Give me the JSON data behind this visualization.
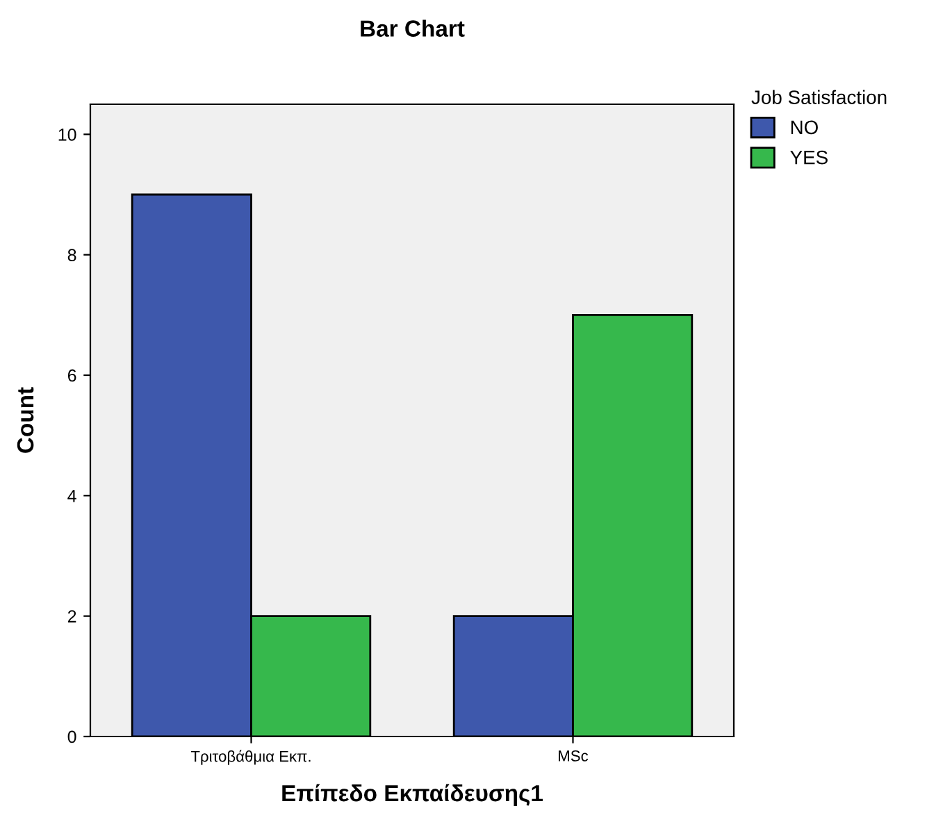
{
  "chart_data": {
    "type": "bar",
    "title": "Bar Chart",
    "xlabel": "Επίπεδο Εκπαίδευσης1",
    "ylabel": "Count",
    "legend_title": "Job Satisfaction",
    "categories": [
      "Τριτοβάθμια Εκπ.",
      "MSc"
    ],
    "series": [
      {
        "name": "NO",
        "color": "#3e58ac",
        "values": [
          9,
          2
        ]
      },
      {
        "name": "YES",
        "color": "#36b84c",
        "values": [
          2,
          7
        ]
      }
    ],
    "ylim": [
      0,
      10.5
    ],
    "yticks": [
      0,
      2,
      4,
      6,
      8,
      10
    ],
    "grid": false,
    "legend": "top right"
  }
}
